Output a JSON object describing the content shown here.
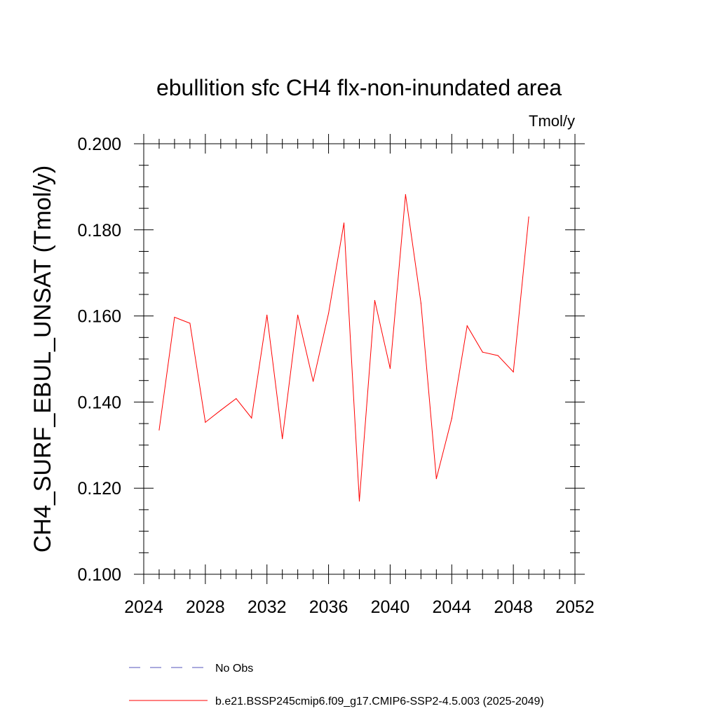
{
  "chart_data": {
    "type": "line",
    "title": "ebullition sfc CH4 flx-non-inundated area",
    "units_label": "Tmol/y",
    "ylabel": "CH4_SURF_EBUL_UNSAT  (Tmol/y)",
    "xlabel": "",
    "xlim": [
      2024,
      2052
    ],
    "ylim": [
      0.1,
      0.2
    ],
    "x_ticks": [
      2024,
      2028,
      2032,
      2036,
      2040,
      2044,
      2048,
      2052
    ],
    "x_tick_labels": [
      "2024",
      "2028",
      "2032",
      "2036",
      "2040",
      "2044",
      "2048",
      "2052"
    ],
    "y_ticks": [
      0.1,
      0.12,
      0.14,
      0.16,
      0.18,
      0.2
    ],
    "y_tick_labels": [
      "0.100",
      "0.120",
      "0.140",
      "0.160",
      "0.180",
      "0.200"
    ],
    "x_minor_step": 1,
    "y_minor_step": 0.005,
    "series": [
      {
        "name": "b.e21.BSSP245cmip6.f09_g17.CMIP6-SSP2-4.5.003 (2025-2049)",
        "color": "#ff0000",
        "style": "solid",
        "x": [
          2025,
          2026,
          2027,
          2028,
          2029,
          2030,
          2031,
          2032,
          2033,
          2034,
          2035,
          2036,
          2037,
          2038,
          2039,
          2040,
          2041,
          2042,
          2043,
          2044,
          2045,
          2046,
          2047,
          2048,
          2049
        ],
        "values": [
          0.1335,
          0.1597,
          0.1583,
          0.1353,
          0.1381,
          0.1408,
          0.1363,
          0.1602,
          0.1315,
          0.1602,
          0.1448,
          0.1606,
          0.1816,
          0.117,
          0.1636,
          0.1478,
          0.1882,
          0.163,
          0.1222,
          0.1362,
          0.1577,
          0.1516,
          0.1508,
          0.147,
          0.183
        ]
      }
    ],
    "legend": [
      {
        "label": "No Obs",
        "color": "#5555bb",
        "style": "dashed"
      },
      {
        "label": "b.e21.BSSP245cmip6.f09_g17.CMIP6-SSP2-4.5.003 (2025-2049)",
        "color": "#ff0000",
        "style": "solid"
      }
    ]
  }
}
